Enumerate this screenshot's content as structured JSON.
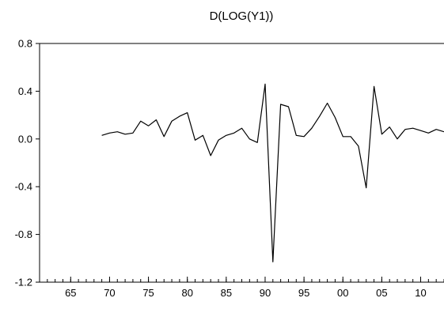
{
  "chart_data": {
    "type": "line",
    "title": "D(LOG(Y1))",
    "xlabel": "",
    "ylabel": "",
    "xlim": [
      1961,
      2013
    ],
    "ylim": [
      -1.2,
      0.8
    ],
    "y_ticks": [
      {
        "value": 0.8,
        "label": "0.8"
      },
      {
        "value": 0.4,
        "label": "0.4"
      },
      {
        "value": 0.0,
        "label": "0.0"
      },
      {
        "value": -0.4,
        "label": "-0.4"
      },
      {
        "value": -0.8,
        "label": "-0.8"
      },
      {
        "value": -1.2,
        "label": "-1.2"
      }
    ],
    "x_major_ticks": [
      {
        "value": 1965,
        "label": "65"
      },
      {
        "value": 1970,
        "label": "70"
      },
      {
        "value": 1975,
        "label": "75"
      },
      {
        "value": 1980,
        "label": "80"
      },
      {
        "value": 1985,
        "label": "85"
      },
      {
        "value": 1990,
        "label": "90"
      },
      {
        "value": 1995,
        "label": "95"
      },
      {
        "value": 2000,
        "label": "00"
      },
      {
        "value": 2005,
        "label": "05"
      },
      {
        "value": 2010,
        "label": "10"
      }
    ],
    "grid": false,
    "legend": "none",
    "series": [
      {
        "x": [
          1969,
          1970,
          1971,
          1972,
          1973,
          1974,
          1975,
          1976,
          1977,
          1978,
          1979,
          1980,
          1981,
          1982,
          1983,
          1984,
          1985,
          1986,
          1987,
          1988,
          1989,
          1990,
          1991,
          1992,
          1993,
          1994,
          1995,
          1996,
          1997,
          1998,
          1999,
          2000,
          2001,
          2002,
          2003,
          2004,
          2005,
          2006,
          2007,
          2008,
          2009,
          2010,
          2011,
          2012,
          2013
        ],
        "y": [
          0.03,
          0.05,
          0.06,
          0.04,
          0.05,
          0.15,
          0.11,
          0.16,
          0.02,
          0.15,
          0.19,
          0.22,
          -0.01,
          0.03,
          -0.14,
          -0.01,
          0.03,
          0.05,
          0.09,
          0.0,
          -0.03,
          0.46,
          -1.03,
          0.29,
          0.27,
          0.03,
          0.02,
          0.09,
          0.19,
          0.3,
          0.18,
          0.02,
          0.02,
          -0.06,
          -0.41,
          0.44,
          0.04,
          0.1,
          0.0,
          0.08,
          0.09,
          0.07,
          0.05,
          0.08,
          0.06
        ]
      }
    ]
  }
}
